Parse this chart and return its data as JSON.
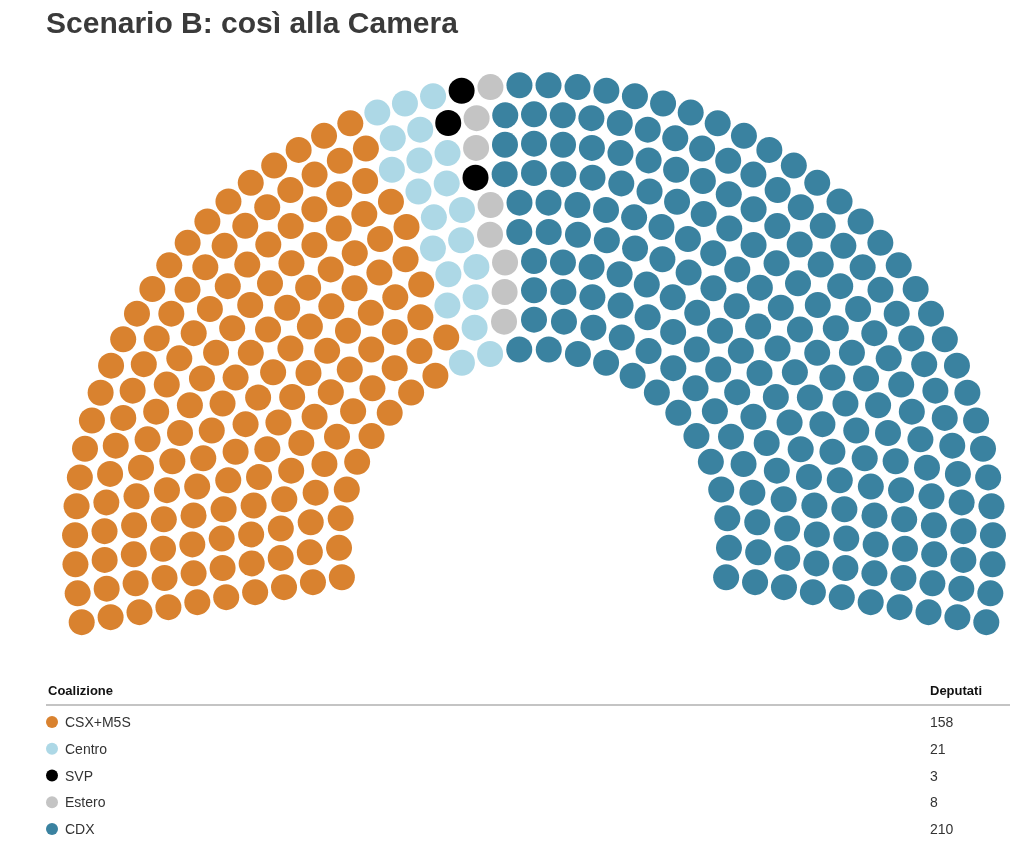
{
  "chart_data": {
    "type": "other",
    "title": "Scenario B: così alla Camera",
    "legend_title": "Coalizione",
    "annotations": [
      "Deputati"
    ],
    "categories": [
      "CSX+M5S",
      "Centro",
      "SVP",
      "Estero",
      "CDX"
    ],
    "values": [
      158,
      21,
      3,
      8,
      210
    ],
    "colors": [
      "#d9822f",
      "#add8e6",
      "#000000",
      "#c4c4c4",
      "#3a82a0"
    ],
    "data_labels": true
  }
}
